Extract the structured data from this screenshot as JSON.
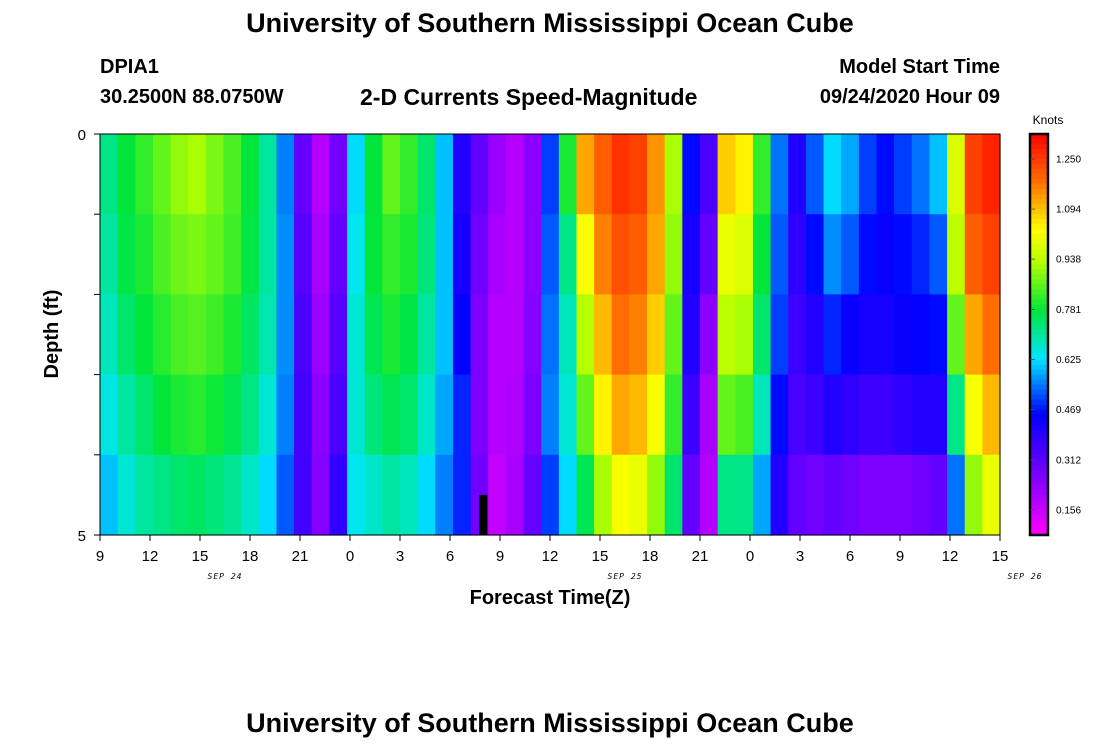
{
  "header": {
    "title": "University of Southern Mississippi Ocean Cube",
    "station_id": "DPIA1",
    "station_coords": "30.2500N 88.0750W",
    "plot_title": "2-D Currents Speed-Magnitude",
    "model_start_label": "Model Start Time",
    "model_start_value": "09/24/2020 Hour 09"
  },
  "footer": {
    "title": "University of Southern Mississippi Ocean Cube"
  },
  "chart_data": {
    "type": "heatmap",
    "title": "2-D Currents Speed-Magnitude",
    "xlabel": "Forecast Time(Z)",
    "ylabel": "Depth (ft)",
    "xlim": [
      0,
      54
    ],
    "ylim": [
      0,
      5
    ],
    "x_tick_labels": [
      "9",
      "12",
      "15",
      "18",
      "21",
      "0",
      "3",
      "6",
      "9",
      "12",
      "15",
      "18",
      "21",
      "0",
      "3",
      "6",
      "9",
      "12",
      "15"
    ],
    "date_labels": [
      "SEP 24",
      "SEP 25",
      "SEP 26"
    ],
    "y_tick_labels": [
      "0",
      "5"
    ],
    "colorbar": {
      "label": "Knots",
      "range": [
        0.078,
        1.328
      ],
      "ticks": [
        "0.156",
        "0.312",
        "0.469",
        "0.625",
        "0.781",
        "0.938",
        "1.094",
        "1.250"
      ]
    },
    "now_marker_hours": 23,
    "depth_rows": [
      0.5,
      1.5,
      2.5,
      3.5,
      4.5
    ],
    "speeds": [
      [
        0.72,
        0.7,
        0.68,
        0.65,
        0.6
      ],
      [
        0.78,
        0.77,
        0.74,
        0.7,
        0.66
      ],
      [
        0.82,
        0.8,
        0.78,
        0.74,
        0.7
      ],
      [
        0.86,
        0.84,
        0.81,
        0.78,
        0.72
      ],
      [
        0.9,
        0.87,
        0.84,
        0.8,
        0.74
      ],
      [
        0.92,
        0.88,
        0.85,
        0.81,
        0.75
      ],
      [
        0.88,
        0.86,
        0.83,
        0.79,
        0.73
      ],
      [
        0.84,
        0.83,
        0.8,
        0.76,
        0.71
      ],
      [
        0.78,
        0.77,
        0.75,
        0.72,
        0.67
      ],
      [
        0.7,
        0.7,
        0.69,
        0.66,
        0.62
      ],
      [
        0.55,
        0.56,
        0.56,
        0.55,
        0.52
      ],
      [
        0.3,
        0.32,
        0.34,
        0.35,
        0.35
      ],
      [
        0.18,
        0.2,
        0.22,
        0.24,
        0.25
      ],
      [
        0.28,
        0.3,
        0.32,
        0.34,
        0.38
      ],
      [
        0.62,
        0.64,
        0.66,
        0.66,
        0.64
      ],
      [
        0.78,
        0.78,
        0.76,
        0.73,
        0.67
      ],
      [
        0.86,
        0.82,
        0.8,
        0.76,
        0.7
      ],
      [
        0.82,
        0.8,
        0.77,
        0.74,
        0.68
      ],
      [
        0.74,
        0.73,
        0.7,
        0.67,
        0.62
      ],
      [
        0.6,
        0.6,
        0.6,
        0.58,
        0.55
      ],
      [
        0.4,
        0.42,
        0.45,
        0.48,
        0.48
      ],
      [
        0.3,
        0.28,
        0.26,
        0.26,
        0.28
      ],
      [
        0.22,
        0.2,
        0.18,
        0.18,
        0.16
      ],
      [
        0.18,
        0.18,
        0.18,
        0.19,
        0.2
      ],
      [
        0.24,
        0.24,
        0.25,
        0.26,
        0.3
      ],
      [
        0.5,
        0.52,
        0.54,
        0.55,
        0.5
      ],
      [
        0.8,
        0.72,
        0.68,
        0.66,
        0.62
      ],
      [
        1.12,
        1.02,
        0.93,
        0.86,
        0.76
      ],
      [
        1.2,
        1.16,
        1.1,
        1.04,
        0.92
      ],
      [
        1.26,
        1.22,
        1.18,
        1.12,
        1.02
      ],
      [
        1.24,
        1.2,
        1.16,
        1.1,
        1.0
      ],
      [
        1.14,
        1.12,
        1.08,
        1.02,
        0.9
      ],
      [
        0.92,
        0.9,
        0.86,
        0.82,
        0.74
      ],
      [
        0.46,
        0.42,
        0.4,
        0.36,
        0.3
      ],
      [
        0.34,
        0.3,
        0.24,
        0.2,
        0.18
      ],
      [
        1.08,
        1.0,
        0.94,
        0.86,
        0.72
      ],
      [
        1.04,
        0.98,
        0.92,
        0.84,
        0.72
      ],
      [
        0.82,
        0.78,
        0.74,
        0.68,
        0.58
      ],
      [
        0.54,
        0.52,
        0.5,
        0.46,
        0.4
      ],
      [
        0.4,
        0.38,
        0.36,
        0.34,
        0.3
      ],
      [
        0.52,
        0.46,
        0.4,
        0.36,
        0.28
      ],
      [
        0.62,
        0.56,
        0.48,
        0.4,
        0.3
      ],
      [
        0.58,
        0.52,
        0.44,
        0.38,
        0.28
      ],
      [
        0.5,
        0.46,
        0.42,
        0.36,
        0.26
      ],
      [
        0.46,
        0.44,
        0.42,
        0.36,
        0.26
      ],
      [
        0.5,
        0.46,
        0.44,
        0.38,
        0.26
      ],
      [
        0.54,
        0.48,
        0.45,
        0.4,
        0.28
      ],
      [
        0.6,
        0.52,
        0.46,
        0.4,
        0.3
      ],
      [
        0.98,
        0.94,
        0.86,
        0.72,
        0.54
      ],
      [
        1.24,
        1.2,
        1.12,
        1.02,
        0.9
      ],
      [
        1.28,
        1.24,
        1.18,
        1.1,
        1.0
      ]
    ]
  }
}
